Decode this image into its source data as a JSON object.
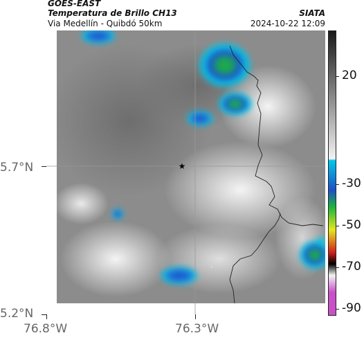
{
  "header": {
    "satellite": "GOES-EAST",
    "product": "Temperatura de Brillo CH13",
    "region": "Via Medellín - Quibdó 50km",
    "organization": "SIATA",
    "timestamp": "2024-10-22 12:09"
  },
  "axes": {
    "lat_ticks": [
      "5.7°N",
      "5.2°N"
    ],
    "lon_ticks": [
      "76.8°W",
      "76.3°W"
    ]
  },
  "colorbar": {
    "ticks": [
      "20",
      "-30",
      "-50",
      "-70",
      "-90"
    ],
    "colors": {
      "warm_top": "#1a1a1a",
      "warm_bottom": "#f2f2f2",
      "cyan": "#00c8e8",
      "blue": "#1e50c8",
      "green": "#1eb43c",
      "yellow": "#e6e61e",
      "red": "#d21e1e",
      "black": "#000000",
      "magenta": "#c850c8"
    }
  },
  "map": {
    "marker_icon": "star-icon",
    "border_color": "#222222",
    "grid_color": "#999999"
  }
}
